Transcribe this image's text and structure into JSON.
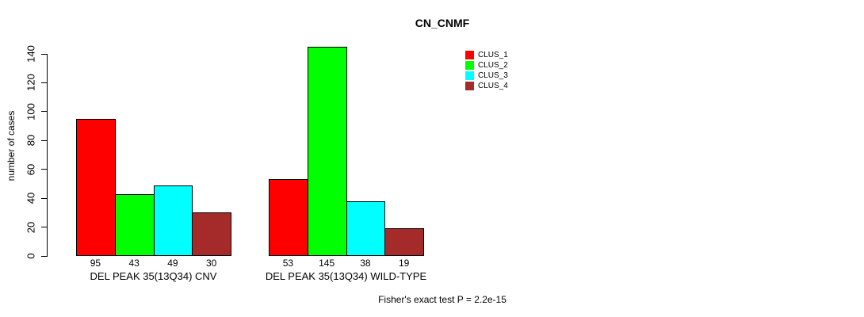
{
  "chart_data": {
    "type": "bar",
    "title": "CN_CNMF",
    "ylabel": "number of cases",
    "xlabel": "",
    "categories": [
      "DEL PEAK 35(13Q34) CNV",
      "DEL PEAK 35(13Q34) WILD-TYPE"
    ],
    "series": [
      {
        "name": "CLUS_1",
        "color": "#FF0000",
        "values": [
          95,
          53
        ]
      },
      {
        "name": "CLUS_2",
        "color": "#00FF00",
        "values": [
          43,
          145
        ]
      },
      {
        "name": "CLUS_3",
        "color": "#00FFFF",
        "values": [
          49,
          38
        ]
      },
      {
        "name": "CLUS_4",
        "color": "#A52A2A",
        "values": [
          30,
          19
        ]
      }
    ],
    "yticks": [
      0,
      20,
      40,
      60,
      80,
      100,
      120,
      140
    ],
    "ylim": [
      0,
      145
    ],
    "grid": false,
    "legend_position": "top-right",
    "show_bar_values": true,
    "annotation": "Fisher's exact test P = 2.2e-15"
  }
}
